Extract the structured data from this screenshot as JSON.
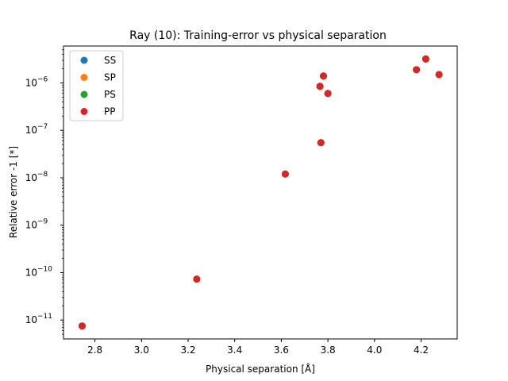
{
  "chart_data": {
    "type": "scatter",
    "title": "Ray (10): Training-error vs physical separation",
    "xlabel": "Physical separation [Å]",
    "ylabel": "Relative error -1 [*]",
    "xscale": "linear",
    "yscale": "log",
    "xlim": [
      2.665,
      4.355
    ],
    "ylim": [
      4e-12,
      6e-06
    ],
    "xticks": [
      2.8,
      3.0,
      3.2,
      3.4,
      3.6,
      3.8,
      4.0,
      4.2
    ],
    "xtick_labels": [
      "2.8",
      "3.0",
      "3.2",
      "3.4",
      "3.6",
      "3.8",
      "4.0",
      "4.2"
    ],
    "yticks": [
      1e-11,
      1e-10,
      1e-09,
      1e-08,
      1e-07,
      1e-06
    ],
    "ytick_labels": [
      {
        "base": "10",
        "exp": "−11"
      },
      {
        "base": "10",
        "exp": "−10"
      },
      {
        "base": "10",
        "exp": "−9"
      },
      {
        "base": "10",
        "exp": "−8"
      },
      {
        "base": "10",
        "exp": "−7"
      },
      {
        "base": "10",
        "exp": "−6"
      }
    ],
    "grid": false,
    "legend_position": "top-left",
    "x": [
      2.745,
      3.237,
      3.617,
      3.766,
      3.77,
      3.781,
      3.8,
      4.18,
      4.22,
      4.277
    ],
    "series": [
      {
        "name": "SS",
        "color": "#1f77b4",
        "y": [
          7.5e-12,
          7.3e-11,
          1.2e-08,
          8.5e-07,
          5.5e-08,
          1.4e-06,
          6e-07,
          1.9e-06,
          3.2e-06,
          1.5e-06
        ]
      },
      {
        "name": "SP",
        "color": "#ff7f0e",
        "y": [
          7.5e-12,
          7.3e-11,
          1.2e-08,
          8.5e-07,
          5.5e-08,
          1.4e-06,
          6e-07,
          1.9e-06,
          3.2e-06,
          1.5e-06
        ]
      },
      {
        "name": "PS",
        "color": "#2ca02c",
        "y": [
          7.5e-12,
          7.3e-11,
          1.2e-08,
          8.5e-07,
          5.5e-08,
          1.4e-06,
          6e-07,
          1.9e-06,
          3.2e-06,
          1.5e-06
        ]
      },
      {
        "name": "PP",
        "color": "#d62728",
        "y": [
          7.5e-12,
          7.3e-11,
          1.2e-08,
          8.5e-07,
          5.5e-08,
          1.4e-06,
          6e-07,
          1.9e-06,
          3.2e-06,
          1.5e-06
        ]
      }
    ]
  }
}
